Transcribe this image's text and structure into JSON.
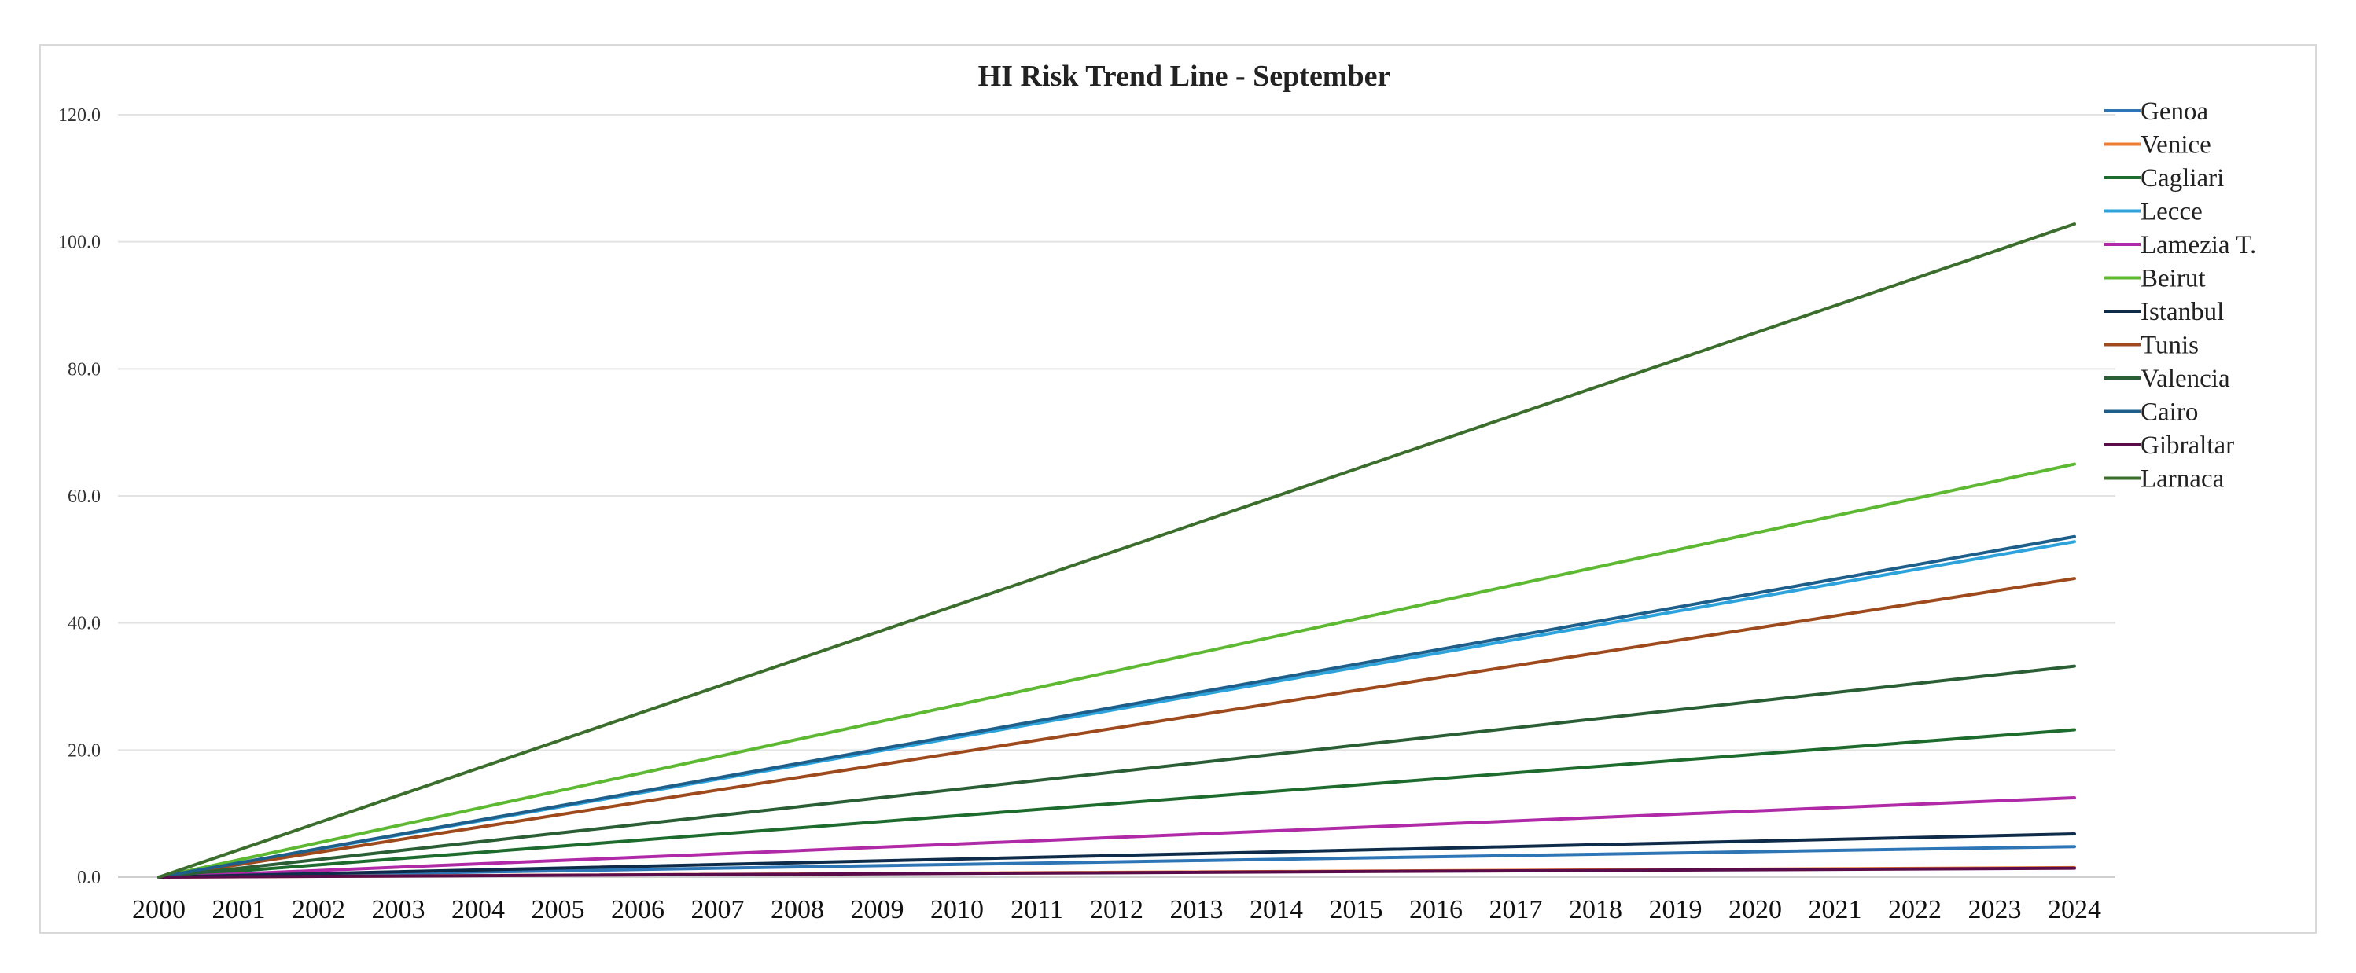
{
  "chart_data": {
    "type": "line",
    "title": "HI Risk Trend Line - September",
    "xlabel": "",
    "ylabel": "",
    "ylim": [
      0,
      120
    ],
    "yticks": [
      "0.0",
      "20.0",
      "40.0",
      "60.0",
      "80.0",
      "100.0",
      "120.0"
    ],
    "ytick_values": [
      0,
      20,
      40,
      60,
      80,
      100,
      120
    ],
    "categories": [
      "2000",
      "2001",
      "2002",
      "2003",
      "2004",
      "2005",
      "2006",
      "2007",
      "2008",
      "2009",
      "2010",
      "2011",
      "2012",
      "2013",
      "2014",
      "2015",
      "2016",
      "2017",
      "2018",
      "2019",
      "2020",
      "2021",
      "2022",
      "2023",
      "2024"
    ],
    "grid": true,
    "legend_position": "right",
    "series": [
      {
        "name": "Genoa",
        "color": "#2e75b6",
        "start": 0,
        "end": 4.8
      },
      {
        "name": "Venice",
        "color": "#ed7d31",
        "start": 0,
        "end": 1.5
      },
      {
        "name": "Cagliari",
        "color": "#1e6b2e",
        "start": 0,
        "end": 23.2
      },
      {
        "name": "Lecce",
        "color": "#2ea3db",
        "start": 0,
        "end": 52.8
      },
      {
        "name": "Lamezia T.",
        "color": "#b02aa8",
        "start": 0,
        "end": 12.5
      },
      {
        "name": "Beirut",
        "color": "#5db832",
        "start": 0,
        "end": 65.0
      },
      {
        "name": "Istanbul",
        "color": "#0e2c4a",
        "start": 0,
        "end": 6.8
      },
      {
        "name": "Tunis",
        "color": "#9e4a1d",
        "start": 0,
        "end": 47.0
      },
      {
        "name": "Valencia",
        "color": "#2a5f36",
        "start": 0,
        "end": 33.2
      },
      {
        "name": "Cairo",
        "color": "#1d5f8a",
        "start": 0,
        "end": 53.6
      },
      {
        "name": "Gibraltar",
        "color": "#5a0c4a",
        "start": 0,
        "end": 1.4
      },
      {
        "name": "Larnaca",
        "color": "#3b6e2c",
        "start": 0,
        "end": 102.8
      }
    ]
  }
}
